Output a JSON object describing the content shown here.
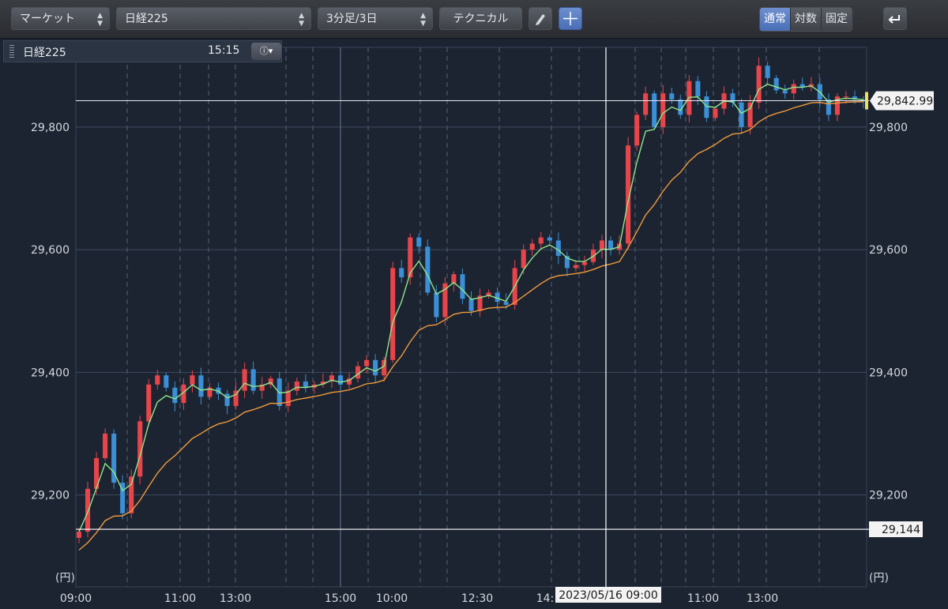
{
  "toolbar": {
    "market_select": "マーケット",
    "symbol_select": "日経225",
    "period_select": "3分足/3日",
    "technical_button": "テクニカル",
    "scale_modes": [
      "通常",
      "対数",
      "固定"
    ],
    "active_scale_mode": "通常"
  },
  "info_panel": {
    "symbol": "日経225",
    "time": "15:15"
  },
  "colors": {
    "up_candle": "#e8454a",
    "down_candle": "#3a8fd6",
    "ma_short": "#8ee68a",
    "ma_long": "#f09a3a",
    "crosshair": "#ffffff",
    "price_marker": "#f1e05a"
  },
  "chart_data": {
    "type": "candlestick",
    "unit_label": "(円)",
    "ylim": [
      29050,
      29930
    ],
    "y_ticks": [
      "29,200",
      "29,400",
      "29,600",
      "29,800"
    ],
    "x_tick_labels": [
      "09:00",
      "11:00",
      "13:00",
      "15:00",
      "10:00",
      "12:30",
      "14:",
      "11:00",
      "13:00"
    ],
    "crosshair_time_label": "2023/05/16 09:00",
    "current_price_label": "29,842.99",
    "current_price": 29842.99,
    "crosshair_price_label": "29,144",
    "crosshair_price": 29144,
    "series": [
      {
        "name": "price",
        "close": [
          29140,
          29210,
          29260,
          29300,
          29220,
          29170,
          29230,
          29320,
          29380,
          29395,
          29375,
          29350,
          29380,
          29395,
          29360,
          29375,
          29365,
          29345,
          29370,
          29405,
          29370,
          29380,
          29390,
          29345,
          29370,
          29385,
          29375,
          29380,
          29385,
          29395,
          29380,
          29390,
          29410,
          29420,
          29395,
          29420,
          29570,
          29555,
          29620,
          29605,
          29530,
          29490,
          29545,
          29560,
          29520,
          29500,
          29525,
          29530,
          29515,
          29510,
          29570,
          29600,
          29610,
          29620,
          29615,
          29590,
          29570,
          29575,
          29580,
          29600,
          29615,
          29600,
          29610,
          29770,
          29820,
          29855,
          29800,
          29855,
          29845,
          29820,
          29875,
          29850,
          29815,
          29830,
          29855,
          29840,
          29800,
          29840,
          29900,
          29880,
          29860,
          29855,
          29870,
          29865,
          29870,
          29845,
          29820,
          29850,
          29850,
          29845,
          29842.99
        ]
      },
      {
        "name": "short-ma"
      },
      {
        "name": "long-ma"
      }
    ]
  }
}
